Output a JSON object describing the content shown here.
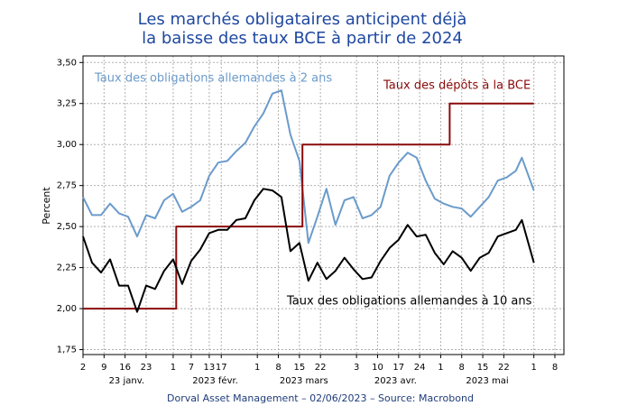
{
  "chart_data": {
    "type": "line",
    "title": [
      "Les marchés obligataires anticipent déjà",
      "la baisse des taux BCE à partir de 2024"
    ],
    "ylabel": "Percent",
    "source": "Dorval Asset Management – 02/06/2023 –  Source: Macrobond",
    "xlim": [
      "2023-01-02",
      "2023-06-11"
    ],
    "ylim": [
      1.72,
      3.54
    ],
    "grid": true,
    "yticks": [
      {
        "value": 1.75,
        "label": "1,75"
      },
      {
        "value": 2,
        "label": "2,00"
      },
      {
        "value": 2.25,
        "label": "2,25"
      },
      {
        "value": 2.5,
        "label": "2,50"
      },
      {
        "value": 2.75,
        "label": "2,75"
      },
      {
        "value": 3,
        "label": "3,00"
      },
      {
        "value": 3.25,
        "label": "3,25"
      },
      {
        "value": 3.5,
        "label": "3,50"
      }
    ],
    "xticks": [
      {
        "value": "2023-01-02",
        "label": "2"
      },
      {
        "value": "2023-01-09",
        "label": "9"
      },
      {
        "value": "2023-01-16",
        "label": "16"
      },
      {
        "value": "2023-01-23",
        "label": "23"
      },
      {
        "value": "2023-02-01",
        "label": "1"
      },
      {
        "value": "2023-02-07",
        "label": "7"
      },
      {
        "value": "2023-02-13",
        "label": "13"
      },
      {
        "value": "2023-02-17",
        "label": "17"
      },
      {
        "value": "2023-03-01",
        "label": "1"
      },
      {
        "value": "2023-03-08",
        "label": "8"
      },
      {
        "value": "2023-03-15",
        "label": "15"
      },
      {
        "value": "2023-03-22",
        "label": "22"
      },
      {
        "value": "2023-04-03",
        "label": "3"
      },
      {
        "value": "2023-04-10",
        "label": "10"
      },
      {
        "value": "2023-04-17",
        "label": "17"
      },
      {
        "value": "2023-04-24",
        "label": "24"
      },
      {
        "value": "2023-05-01",
        "label": "1"
      },
      {
        "value": "2023-05-08",
        "label": "8"
      },
      {
        "value": "2023-05-15",
        "label": "15"
      },
      {
        "value": "2023-05-22",
        "label": "22"
      },
      {
        "value": "2023-06-01",
        "label": "1"
      },
      {
        "value": "2023-06-08",
        "label": "8"
      }
    ],
    "x_groups": [
      "23 janv.",
      "2023 févr.",
      "2023 mars",
      "2023 avr.",
      "2023 mai"
    ],
    "x": [
      "2023-01-02",
      "2023-01-05",
      "2023-01-08",
      "2023-01-11",
      "2023-01-14",
      "2023-01-17",
      "2023-01-20",
      "2023-01-23",
      "2023-01-26",
      "2023-01-29",
      "2023-02-01",
      "2023-02-04",
      "2023-02-07",
      "2023-02-10",
      "2023-02-13",
      "2023-02-16",
      "2023-02-19",
      "2023-02-22",
      "2023-02-25",
      "2023-02-28",
      "2023-03-03",
      "2023-03-06",
      "2023-03-09",
      "2023-03-12",
      "2023-03-15",
      "2023-03-18",
      "2023-03-21",
      "2023-03-24",
      "2023-03-27",
      "2023-03-30",
      "2023-04-02",
      "2023-04-05",
      "2023-04-08",
      "2023-04-11",
      "2023-04-14",
      "2023-04-17",
      "2023-04-20",
      "2023-04-23",
      "2023-04-26",
      "2023-04-29",
      "2023-05-02",
      "2023-05-05",
      "2023-05-08",
      "2023-05-11",
      "2023-05-14",
      "2023-05-17",
      "2023-05-20",
      "2023-05-23",
      "2023-05-26",
      "2023-05-28",
      "2023-06-01"
    ],
    "series": [
      {
        "name": "Taux des obligations allemandes à 2 ans",
        "color": "#6b9bcb",
        "values": [
          2.68,
          2.57,
          2.57,
          2.64,
          2.58,
          2.56,
          2.44,
          2.57,
          2.55,
          2.66,
          2.7,
          2.59,
          2.62,
          2.66,
          2.81,
          2.89,
          2.9,
          2.96,
          3.01,
          3.11,
          3.19,
          3.31,
          3.33,
          3.06,
          2.9,
          2.4,
          2.56,
          2.73,
          2.51,
          2.66,
          2.68,
          2.55,
          2.57,
          2.62,
          2.81,
          2.89,
          2.95,
          2.92,
          2.78,
          2.67,
          2.64,
          2.62,
          2.61,
          2.56,
          2.62,
          2.68,
          2.78,
          2.8,
          2.84,
          2.92,
          2.72
        ]
      },
      {
        "name": "Taux des dépôts à la BCE",
        "color": "#8b0a0a",
        "x": [
          "2023-01-02",
          "2023-02-02",
          "2023-02-02",
          "2023-03-16",
          "2023-03-16",
          "2023-05-04",
          "2023-05-04",
          "2023-06-01"
        ],
        "values": [
          2,
          2,
          2.5,
          2.5,
          3,
          3,
          3.25,
          3.25
        ]
      },
      {
        "name": "Taux des obligations allemandes à 10 ans",
        "color": "#000000",
        "values": [
          2.44,
          2.28,
          2.22,
          2.3,
          2.14,
          2.14,
          1.98,
          2.14,
          2.12,
          2.23,
          2.3,
          2.15,
          2.29,
          2.36,
          2.46,
          2.48,
          2.48,
          2.54,
          2.55,
          2.66,
          2.73,
          2.72,
          2.68,
          2.35,
          2.4,
          2.17,
          2.28,
          2.18,
          2.23,
          2.31,
          2.24,
          2.18,
          2.19,
          2.29,
          2.37,
          2.42,
          2.51,
          2.44,
          2.45,
          2.34,
          2.27,
          2.35,
          2.31,
          2.23,
          2.31,
          2.34,
          2.44,
          2.46,
          2.48,
          2.54,
          2.28
        ]
      }
    ]
  }
}
